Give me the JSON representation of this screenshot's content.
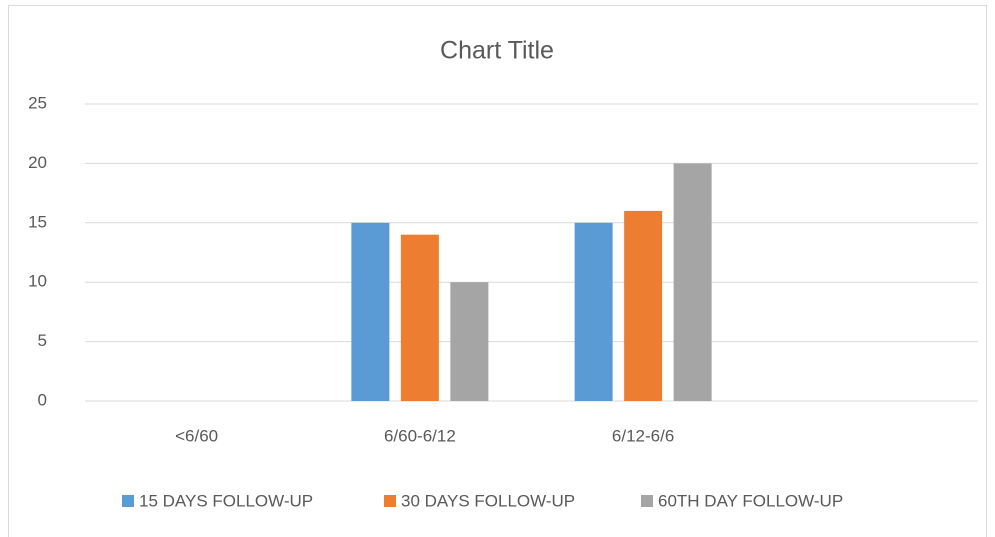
{
  "chart_data": {
    "type": "bar",
    "title": "Chart Title",
    "categories": [
      "<6/60",
      "6/60-6/12",
      "6/12-6/6",
      null
    ],
    "series": [
      {
        "name": "15 DAYS FOLLOW-UP",
        "color": "#5b9bd5",
        "values": [
          0,
          15,
          15,
          null
        ]
      },
      {
        "name": "30 DAYS FOLLOW-UP",
        "color": "#ed7d31",
        "values": [
          0,
          14,
          16,
          null
        ]
      },
      {
        "name": "60TH DAY FOLLOW-UP",
        "color": "#a5a5a5",
        "values": [
          0,
          10,
          20,
          null
        ]
      }
    ],
    "ylim": [
      0,
      25
    ],
    "yticks": [
      0,
      5,
      10,
      15,
      20,
      25
    ],
    "grid": true,
    "legend": "bottom"
  }
}
